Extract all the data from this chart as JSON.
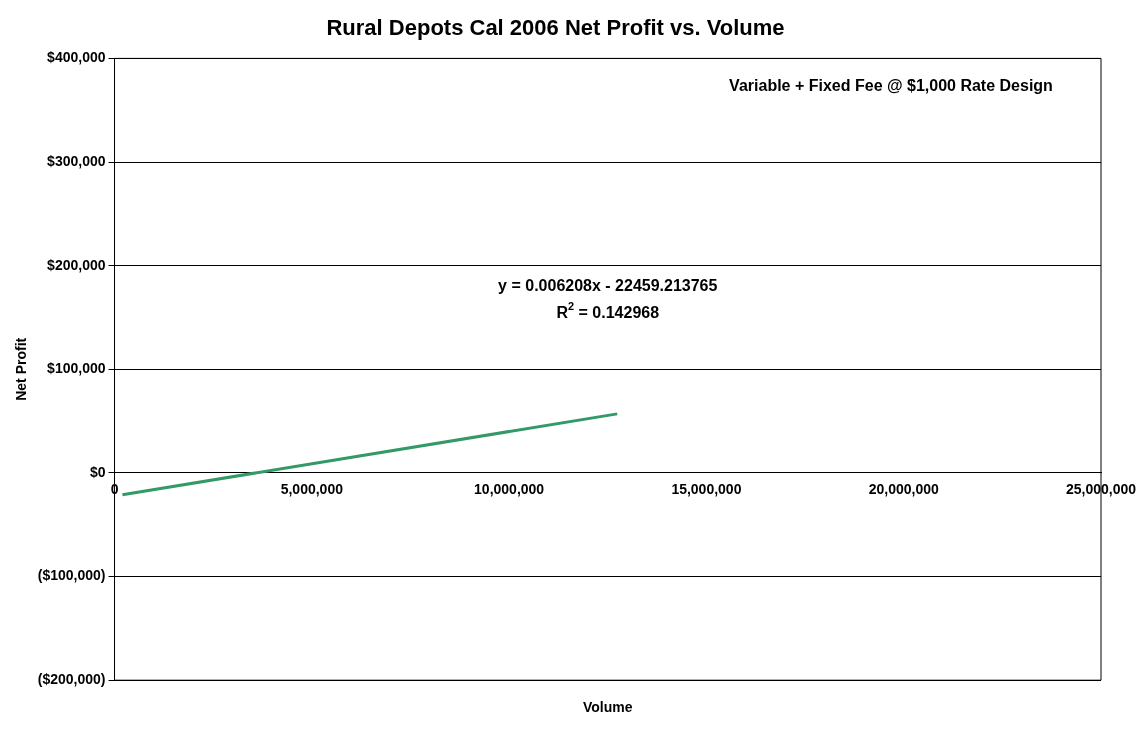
{
  "chart_data": {
    "type": "line",
    "title": "Rural Depots Cal 2006 Net Profit vs. Volume",
    "xlabel": "Volume",
    "ylabel": "Net Profit",
    "series": [
      {
        "color": "#339966",
        "x": [
          200000,
          12740000
        ],
        "values": [
          -21000,
          57000
        ]
      }
    ],
    "xlim": [
      0,
      25000000
    ],
    "xticks": [
      {
        "value": 0,
        "label": "0"
      },
      {
        "value": 5000000,
        "label": "5,000,000"
      },
      {
        "value": 10000000,
        "label": "10,000,000"
      },
      {
        "value": 15000000,
        "label": "15,000,000"
      },
      {
        "value": 20000000,
        "label": "20,000,000"
      },
      {
        "value": 25000000,
        "label": "25,000,000"
      }
    ],
    "ylim": [
      -200000,
      400000
    ],
    "yticks": [
      {
        "value": -200000,
        "label": "($200,000)"
      },
      {
        "value": -100000,
        "label": "($100,000)"
      },
      {
        "value": 0,
        "label": "$0"
      },
      {
        "value": 100000,
        "label": "$100,000"
      },
      {
        "value": 200000,
        "label": "$200,000"
      },
      {
        "value": 300000,
        "label": "$300,000"
      },
      {
        "value": 400000,
        "label": "$400,000"
      }
    ],
    "annotations": [
      "Variable + Fixed Fee @ $1,000 Rate Design",
      "y = 0.006208x - 22459.213765",
      "R$^{2}$ = 0.142968"
    ],
    "grid": "y",
    "legend": false,
    "marker": "none",
    "line_style": "solid"
  }
}
